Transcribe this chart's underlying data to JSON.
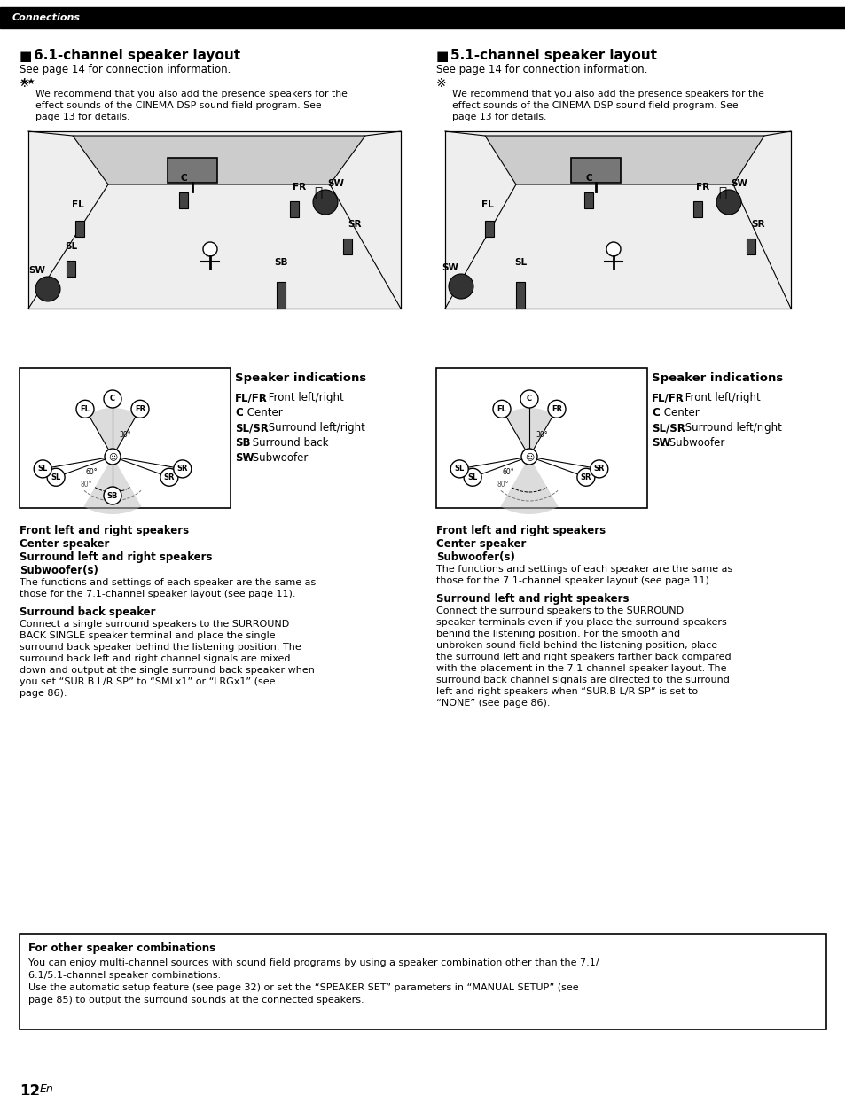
{
  "page_bg": "#ffffff",
  "header_bg": "#000000",
  "header_text": "Connections",
  "header_text_color": "#ffffff",
  "title_left": "6.1-channel speaker layout",
  "title_right": "5.1-channel speaker layout",
  "subtitle": "See page 14 for connection information.",
  "tip_text_lines": [
    "We recommend that you also add the presence speakers for the",
    "effect sounds of the CINEMA DSP sound field program. See",
    "page 13 for details."
  ],
  "speaker_indications_title": "Speaker indications",
  "speaker_indications_61": [
    [
      "FL/FR",
      ": Front left/right"
    ],
    [
      "C",
      ": Center"
    ],
    [
      "SL/SR",
      ": Surround left/right"
    ],
    [
      "SB",
      ": Surround back"
    ],
    [
      "SW",
      ": Subwoofer"
    ]
  ],
  "speaker_indications_51": [
    [
      "FL/FR",
      ": Front left/right"
    ],
    [
      "C",
      ": Center"
    ],
    [
      "SL/SR",
      ": Surround left/right"
    ],
    [
      "SW",
      ": Subwoofer"
    ]
  ],
  "left_bold_headers": [
    "Front left and right speakers",
    "Center speaker",
    "Surround left and right speakers",
    "Subwoofer(s)"
  ],
  "left_body": [
    "The functions and settings of each speaker are the same as",
    "those for the 7.1-channel speaker layout (see page 11)."
  ],
  "surround_back_header": "Surround back speaker",
  "surround_back_body": [
    "Connect a single surround speakers to the SURROUND",
    "BACK SINGLE speaker terminal and place the single",
    "surround back speaker behind the listening position. The",
    "surround back left and right channel signals are mixed",
    "down and output at the single surround back speaker when",
    "you set “SUR.B L/R SP” to “SMLx1” or “LRGx1” (see",
    "page 86)."
  ],
  "right_bold_headers": [
    "Front left and right speakers",
    "Center speaker",
    "Subwoofer(s)"
  ],
  "right_body": [
    "The functions and settings of each speaker are the same as",
    "those for the 7.1-channel speaker layout (see page 11)."
  ],
  "surround_lr_header": "Surround left and right speakers",
  "surround_lr_body": [
    "Connect the surround speakers to the SURROUND",
    "speaker terminals even if you place the surround speakers",
    "behind the listening position. For the smooth and",
    "unbroken sound field behind the listening position, place",
    "the surround left and right speakers farther back compared",
    "with the placement in the 7.1-channel speaker layout. The",
    "surround back channel signals are directed to the surround",
    "left and right speakers when “SUR.B L/R SP” is set to",
    "“NONE” (see page 86)."
  ],
  "other_header": "For other speaker combinations",
  "other_body": [
    "You can enjoy multi-channel sources with sound field programs by using a speaker combination other than the 7.1/",
    "6.1/5.1-channel speaker combinations.",
    "Use the automatic setup feature (see page 32) or set the “SPEAKER SET” parameters in “MANUAL SETUP” (see",
    "page 85) to output the surround sounds at the connected speakers."
  ],
  "page_number": "12",
  "page_suffix": "En"
}
